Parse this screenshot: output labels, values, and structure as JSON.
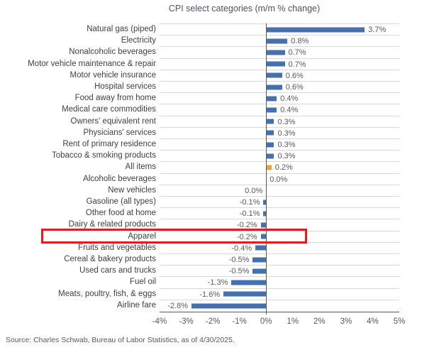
{
  "source": "Source: Charles Schwab, Bureau of Labor Statistics, as of 4/30/2025.",
  "chart_data": {
    "type": "bar",
    "orientation": "horizontal",
    "title": "CPI select categories (m/m % change)",
    "categories": [
      "Natural gas (piped)",
      "Electricity",
      "Nonalcoholic beverages",
      "Motor vehicle maintenance & repair",
      "Motor vehicle insurance",
      "Hospital services",
      "Food away from home",
      "Medical care commodities",
      "Owners' equivalent rent",
      "Physicians' services",
      "Rent of primary residence",
      "Tobacco & smoking products",
      "All items",
      "Alcoholic beverages",
      "New vehicles",
      "Gasoline (all types)",
      "Other food at home",
      "Dairy & related products",
      "Apparel",
      "Fruits and vegetables",
      "Cereal & bakery products",
      "Used cars and trucks",
      "Fuel oil",
      "Meats, poultry, fish, & eggs",
      "Airline fare"
    ],
    "values": [
      3.7,
      0.8,
      0.7,
      0.7,
      0.6,
      0.6,
      0.4,
      0.4,
      0.3,
      0.3,
      0.3,
      0.3,
      0.2,
      0.0,
      0.0,
      -0.1,
      -0.1,
      -0.2,
      -0.2,
      -0.4,
      -0.5,
      -0.5,
      -1.3,
      -1.6,
      -2.8
    ],
    "value_labels": [
      "3.7%",
      "0.8%",
      "0.7%",
      "0.7%",
      "0.6%",
      "0.6%",
      "0.4%",
      "0.4%",
      "0.3%",
      "0.3%",
      "0.3%",
      "0.3%",
      "0.2%",
      "0.0%",
      "0.0%",
      "-0.1%",
      "-0.1%",
      "-0.2%",
      "-0.2%",
      "-0.4%",
      "-0.5%",
      "-0.5%",
      "-1.3%",
      "-1.6%",
      "-2.8%"
    ],
    "label_sides": [
      "right",
      "right",
      "right",
      "right",
      "right",
      "right",
      "right",
      "right",
      "right",
      "right",
      "right",
      "right",
      "right",
      "right",
      "left",
      "left",
      "left",
      "left",
      "left",
      "left",
      "left",
      "left",
      "left",
      "left",
      "left"
    ],
    "xlim": [
      -4,
      5
    ],
    "x_ticks": [
      {
        "value": -4,
        "label": "-4%"
      },
      {
        "value": -3,
        "label": "-3%"
      },
      {
        "value": -2,
        "label": "-2%"
      },
      {
        "value": -1,
        "label": "-1%"
      },
      {
        "value": 0,
        "label": "0%"
      },
      {
        "value": 1,
        "label": "1%"
      },
      {
        "value": 2,
        "label": "2%"
      },
      {
        "value": 3,
        "label": "3%"
      },
      {
        "value": 4,
        "label": "4%"
      },
      {
        "value": 5,
        "label": "5%"
      }
    ],
    "bar_color": "#4470ae",
    "accent": {
      "category": "All items",
      "color": "#e9a33b"
    },
    "highlight": {
      "category": "Apparel",
      "style": "red-box",
      "color": "#e31b23"
    },
    "gridlines": true,
    "legend": "none"
  }
}
